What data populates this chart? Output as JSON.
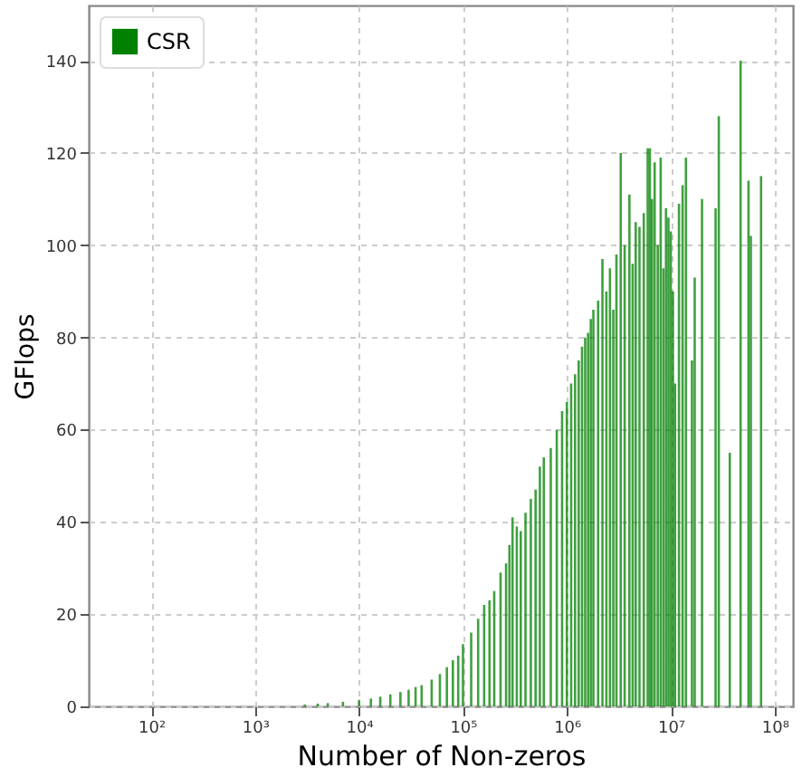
{
  "chart_data": {
    "type": "bar",
    "xlabel": "Number of Non-zeros",
    "ylabel": "GFlops",
    "log": "x",
    "grid": true,
    "legend": "top left",
    "x": [
      3000,
      4000,
      5000,
      7000,
      10000,
      13000,
      16000,
      20000,
      25000,
      30000,
      35000,
      40000,
      50000,
      60000,
      70000,
      80000,
      90000,
      100000,
      120000,
      140000,
      160000,
      180000,
      200000,
      230000,
      260000,
      280000,
      300000,
      330000,
      360000,
      400000,
      450000,
      500000,
      550000,
      600000,
      700000,
      800000,
      900000,
      1000000,
      1100000,
      1200000,
      1300000,
      1400000,
      1500000,
      1600000,
      1700000,
      1800000,
      2000000,
      2200000,
      2400000,
      2600000,
      2800000,
      3000000,
      3300000,
      3600000,
      4000000,
      4300000,
      4600000,
      5000000,
      5500000,
      6000000,
      6300000,
      6600000,
      7000000,
      7500000,
      8000000,
      8500000,
      9000000,
      9500000,
      10000000,
      10500000,
      11000000,
      12000000,
      13000000,
      14000000,
      16000000,
      17000000,
      20000000,
      27000000,
      29000000,
      37000000,
      47000000,
      56000000,
      59000000,
      74000000
    ],
    "series": [
      {
        "name": "CSR",
        "color": "#008000",
        "values": [
          0.4,
          0.6,
          0.7,
          1.0,
          1.4,
          1.7,
          2.1,
          2.6,
          3.1,
          3.6,
          4.2,
          4.6,
          5.8,
          7,
          8.5,
          10,
          11,
          13.5,
          16,
          19,
          22,
          23,
          25,
          29,
          31,
          35,
          41,
          39,
          38,
          42,
          45,
          47,
          52,
          54,
          56,
          60,
          64,
          66,
          70,
          72,
          75,
          78,
          80,
          81,
          84,
          86,
          88,
          97,
          90,
          95,
          86,
          98,
          120,
          100,
          111,
          96,
          105,
          104,
          107,
          121,
          121,
          110,
          118,
          100,
          119,
          95,
          108,
          106,
          103,
          90,
          70,
          109,
          113,
          119,
          75,
          93,
          110,
          108,
          128,
          55,
          140,
          114,
          102,
          115
        ]
      }
    ],
    "xlim": [
      25,
      150000000
    ],
    "xticks": [
      {
        "value": 100,
        "label": "10²"
      },
      {
        "value": 1000,
        "label": "10³"
      },
      {
        "value": 10000,
        "label": "10⁴"
      },
      {
        "value": 100000,
        "label": "10⁵"
      },
      {
        "value": 1000000,
        "label": "10⁶"
      },
      {
        "value": 10000000,
        "label": "10⁷"
      },
      {
        "value": 100000000,
        "label": "10⁸"
      }
    ],
    "ylim": [
      0,
      152
    ],
    "yticks": [
      0,
      20,
      40,
      60,
      80,
      100,
      120,
      140
    ]
  }
}
